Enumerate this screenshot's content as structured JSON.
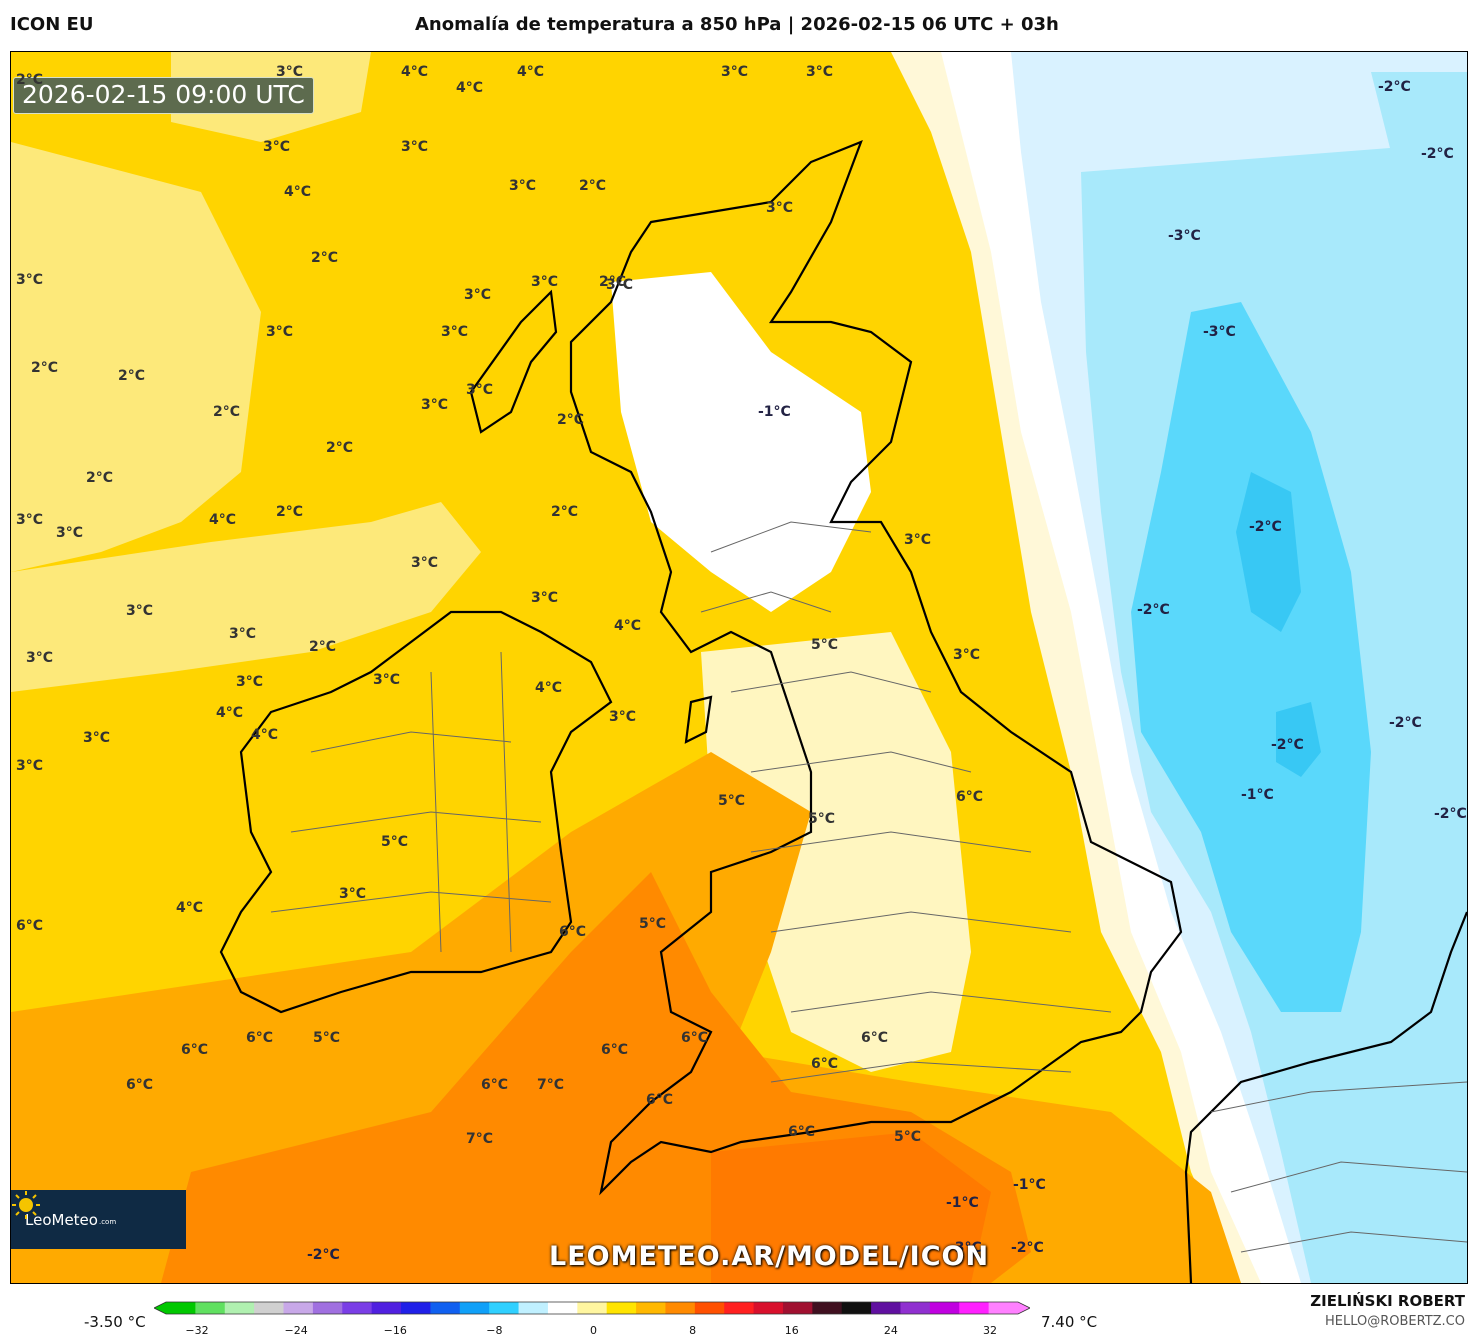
{
  "header": {
    "model": "ICON EU",
    "title": "Anomalía de temperatura a 850 hPa | 2026-02-15 06 UTC + 03h"
  },
  "map": {
    "timestamp": "2026-02-15 09:00 UTC",
    "logo_text": "LeoMeteo",
    "logo_suffix": ".com",
    "watermark": "LEOMETEO.AR/MODEL/ICON",
    "contour_labels": [
      "3°C",
      "4°C",
      "4°C",
      "4°C",
      "3°C",
      "3°C",
      "2°C",
      "3°C",
      "3°C",
      "4°C",
      "3°C",
      "2°C",
      "3°C",
      "2°C",
      "3°C",
      "3°C",
      "3°C",
      "2°C",
      "3°C",
      "3°C",
      "3°C",
      "2°C",
      "2°C",
      "3°C",
      "2°C",
      "-1°C",
      "3°C",
      "2°C",
      "2°C",
      "2°C",
      "3°C",
      "2°C",
      "2°C",
      "4°C",
      "3°C",
      "3°C",
      "3°C",
      "3°C",
      "4°C",
      "3°C",
      "3°C",
      "2°C",
      "3°C",
      "3°C",
      "4°C",
      "3°C",
      "3°C",
      "5°C",
      "3°C",
      "5°C",
      "3°C",
      "3°C",
      "4°C",
      "4°C",
      "6°C",
      "5°C",
      "3°C",
      "4°C",
      "5°C",
      "5°C",
      "6°C",
      "6°C",
      "6°C",
      "5°C",
      "6°C",
      "6°C",
      "6°C",
      "6°C",
      "6°C",
      "7°C",
      "6°C",
      "7°C",
      "6°C",
      "6°C",
      "6°C",
      "5°C",
      "-1°C",
      "-1°C",
      "-2°C",
      "-2°C",
      "-3°C",
      "-2°C",
      "-2°C",
      "-3°C",
      "-3°C",
      "-2°C",
      "-2°C",
      "-2°C",
      "-2°C",
      "-1°C",
      "-2°C"
    ],
    "colors": {
      "warm_light": "#fde97a",
      "warm": "#ffd400",
      "orange": "#ffaa00",
      "deep_orange": "#ff8a00",
      "neutral": "#ffffff",
      "cold_light": "#d9f2ff",
      "cold": "#a8e9fb",
      "cold_deep": "#5ad8fb",
      "land_line": "#000000",
      "border_line": "#666666"
    }
  },
  "legend": {
    "min_label": "-3.50 °C",
    "max_label": "7.40 °C",
    "ticks": [
      "−32",
      "−24",
      "−16",
      "−8",
      "0",
      "8",
      "16",
      "24",
      "32"
    ],
    "colors": [
      "#00c800",
      "#60e060",
      "#b0f0b0",
      "#d0d0d0",
      "#c8a8e8",
      "#a070e0",
      "#7a3ee6",
      "#5020e0",
      "#2020e8",
      "#1060f0",
      "#10a0f8",
      "#30d0ff",
      "#c0f0ff",
      "#ffffff",
      "#fff6a0",
      "#ffe400",
      "#ffb800",
      "#ff8a00",
      "#ff5000",
      "#ff2020",
      "#d8102c",
      "#a01030",
      "#401020",
      "#101010",
      "#6010a0",
      "#9030d0",
      "#c000e0",
      "#ff20ff",
      "#ff80ff"
    ]
  },
  "credits": {
    "author": "ZIELIŃSKI ROBERT",
    "email": "HELLO@ROBERTZ.CO"
  }
}
